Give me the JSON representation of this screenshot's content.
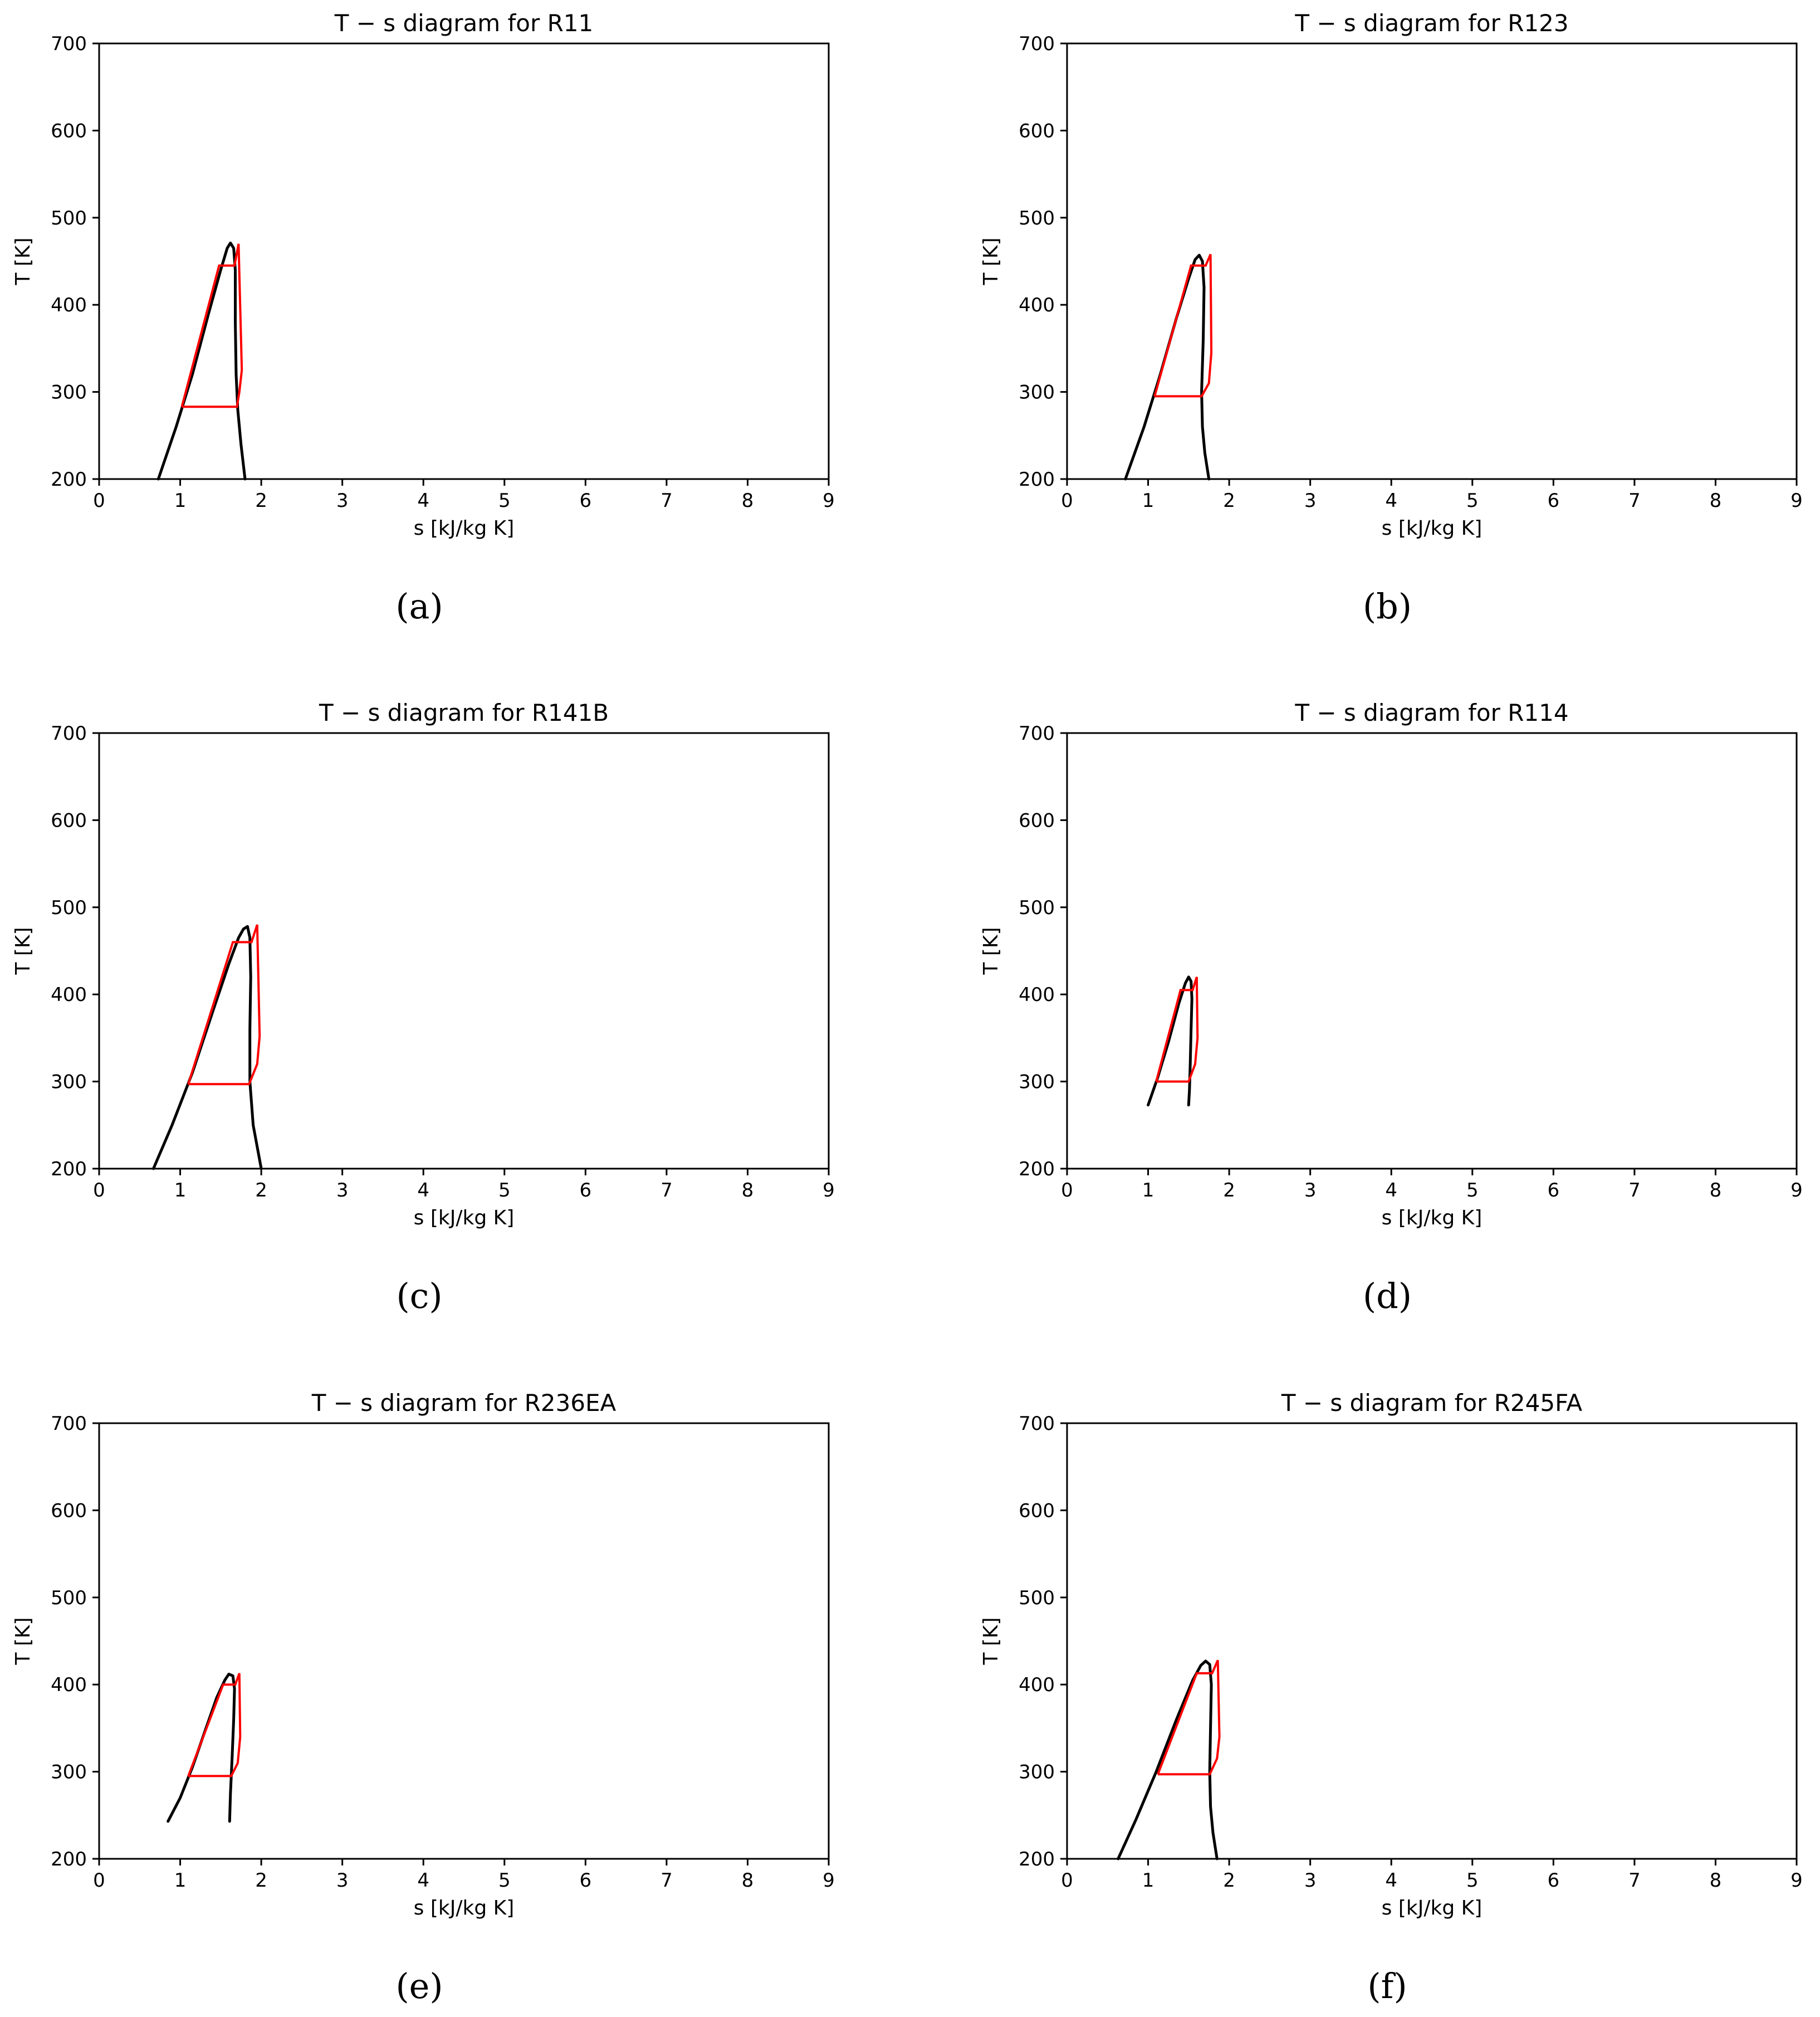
{
  "chart_data": [
    {
      "type": "line",
      "title": "T − s diagram for R11",
      "xlabel": "s [kJ/kg K]",
      "ylabel": "T [K]",
      "xlim": [
        0,
        9
      ],
      "ylim": [
        200,
        700
      ],
      "xticks": [
        "0",
        "1",
        "2",
        "3",
        "4",
        "5",
        "6",
        "7",
        "8",
        "9"
      ],
      "yticks": [
        "200",
        "300",
        "400",
        "500",
        "600",
        "700"
      ],
      "caption": "(a)",
      "grid": false,
      "series": [
        {
          "color": "#000000",
          "x": [
            0.73,
            0.95,
            1.15,
            1.35,
            1.5,
            1.58,
            1.62,
            1.66,
            1.68,
            1.68,
            1.69,
            1.71,
            1.75,
            1.8
          ],
          "y": [
            200,
            260,
            320,
            390,
            440,
            465,
            471,
            465,
            440,
            380,
            320,
            280,
            240,
            200
          ]
        },
        {
          "color": "#ff0000",
          "x": [
            1.02,
            1.48,
            1.48,
            1.65,
            1.67,
            1.72,
            1.76,
            1.73,
            1.7,
            1.02
          ],
          "y": [
            283,
            445,
            445,
            445,
            445,
            470,
            325,
            300,
            283,
            283
          ]
        }
      ]
    },
    {
      "type": "line",
      "title": "T − s diagram for R123",
      "xlabel": "s [kJ/kg K]",
      "ylabel": "T [K]",
      "xlim": [
        0,
        9
      ],
      "ylim": [
        200,
        700
      ],
      "xticks": [
        "0",
        "1",
        "2",
        "3",
        "4",
        "5",
        "6",
        "7",
        "8",
        "9"
      ],
      "yticks": [
        "200",
        "300",
        "400",
        "500",
        "600",
        "700"
      ],
      "caption": "(b)",
      "grid": false,
      "series": [
        {
          "color": "#000000",
          "x": [
            0.72,
            0.95,
            1.15,
            1.35,
            1.5,
            1.58,
            1.63,
            1.67,
            1.69,
            1.68,
            1.66,
            1.67,
            1.7,
            1.75
          ],
          "y": [
            200,
            260,
            320,
            385,
            430,
            452,
            457,
            450,
            420,
            360,
            300,
            260,
            230,
            200
          ]
        },
        {
          "color": "#ff0000",
          "x": [
            1.08,
            1.53,
            1.53,
            1.69,
            1.71,
            1.77,
            1.78,
            1.75,
            1.66,
            1.08
          ],
          "y": [
            295,
            445,
            445,
            445,
            445,
            458,
            345,
            310,
            295,
            295
          ]
        }
      ]
    },
    {
      "type": "line",
      "title": "T − s diagram for R141B",
      "xlabel": "s [kJ/kg K]",
      "ylabel": "T [K]",
      "xlim": [
        0,
        9
      ],
      "ylim": [
        200,
        700
      ],
      "xticks": [
        "0",
        "1",
        "2",
        "3",
        "4",
        "5",
        "6",
        "7",
        "8",
        "9"
      ],
      "yticks": [
        "200",
        "300",
        "400",
        "500",
        "600",
        "700"
      ],
      "caption": "(c)",
      "grid": false,
      "series": [
        {
          "color": "#000000",
          "x": [
            0.67,
            0.9,
            1.15,
            1.4,
            1.6,
            1.72,
            1.78,
            1.83,
            1.86,
            1.87,
            1.86,
            1.86,
            1.9,
            2.0
          ],
          "y": [
            200,
            250,
            310,
            380,
            435,
            465,
            475,
            478,
            465,
            420,
            360,
            300,
            250,
            200
          ]
        },
        {
          "color": "#ff0000",
          "x": [
            1.1,
            1.65,
            1.65,
            1.86,
            1.88,
            1.95,
            1.98,
            1.95,
            1.85,
            1.1
          ],
          "y": [
            297,
            460,
            460,
            460,
            460,
            480,
            352,
            320,
            297,
            297
          ]
        }
      ]
    },
    {
      "type": "line",
      "title": "T − s diagram for R114",
      "xlabel": "s [kJ/kg K]",
      "ylabel": "T [K]",
      "xlim": [
        0,
        9
      ],
      "ylim": [
        200,
        700
      ],
      "xticks": [
        "0",
        "1",
        "2",
        "3",
        "4",
        "5",
        "6",
        "7",
        "8",
        "9"
      ],
      "yticks": [
        "200",
        "300",
        "400",
        "500",
        "600",
        "700"
      ],
      "caption": "(d)",
      "grid": false,
      "series": [
        {
          "color": "#000000",
          "x": [
            1.0,
            1.12,
            1.25,
            1.38,
            1.46,
            1.5,
            1.53,
            1.54,
            1.53,
            1.52,
            1.51,
            1.5
          ],
          "y": [
            273,
            305,
            345,
            390,
            413,
            420,
            415,
            395,
            360,
            320,
            290,
            273
          ]
        },
        {
          "color": "#ff0000",
          "x": [
            1.1,
            1.4,
            1.4,
            1.53,
            1.55,
            1.6,
            1.61,
            1.58,
            1.5,
            1.1
          ],
          "y": [
            300,
            405,
            405,
            405,
            405,
            420,
            350,
            320,
            300,
            300
          ]
        }
      ]
    },
    {
      "type": "line",
      "title": "T − s diagram for R236EA",
      "xlabel": "s [kJ/kg K]",
      "ylabel": "T [K]",
      "xlim": [
        0,
        9
      ],
      "ylim": [
        200,
        700
      ],
      "xticks": [
        "0",
        "1",
        "2",
        "3",
        "4",
        "5",
        "6",
        "7",
        "8",
        "9"
      ],
      "yticks": [
        "200",
        "300",
        "400",
        "500",
        "600",
        "700"
      ],
      "caption": "(e)",
      "grid": false,
      "series": [
        {
          "color": "#000000",
          "x": [
            0.85,
            1.0,
            1.15,
            1.3,
            1.45,
            1.55,
            1.6,
            1.65,
            1.67,
            1.66,
            1.64,
            1.62,
            1.61
          ],
          "y": [
            243,
            270,
            305,
            345,
            385,
            405,
            412,
            410,
            395,
            360,
            315,
            275,
            243
          ]
        },
        {
          "color": "#ff0000",
          "x": [
            1.1,
            1.53,
            1.53,
            1.66,
            1.68,
            1.73,
            1.74,
            1.71,
            1.63,
            1.1
          ],
          "y": [
            295,
            400,
            400,
            400,
            400,
            413,
            340,
            310,
            295,
            295
          ]
        }
      ]
    },
    {
      "type": "line",
      "title": "T − s diagram for R245FA",
      "xlabel": "s [kJ/kg K]",
      "ylabel": "T [K]",
      "xlim": [
        0,
        9
      ],
      "ylim": [
        200,
        700
      ],
      "xticks": [
        "0",
        "1",
        "2",
        "3",
        "4",
        "5",
        "6",
        "7",
        "8",
        "9"
      ],
      "yticks": [
        "200",
        "300",
        "400",
        "500",
        "600",
        "700"
      ],
      "caption": "(f)",
      "grid": false,
      "series": [
        {
          "color": "#000000",
          "x": [
            0.63,
            0.85,
            1.1,
            1.35,
            1.55,
            1.65,
            1.71,
            1.76,
            1.78,
            1.77,
            1.76,
            1.77,
            1.8,
            1.85
          ],
          "y": [
            200,
            245,
            300,
            360,
            405,
            422,
            427,
            423,
            400,
            350,
            300,
            260,
            230,
            200
          ]
        },
        {
          "color": "#ff0000",
          "x": [
            1.12,
            1.6,
            1.6,
            1.77,
            1.79,
            1.86,
            1.88,
            1.85,
            1.76,
            1.12
          ],
          "y": [
            297,
            413,
            413,
            413,
            413,
            428,
            340,
            315,
            297,
            297
          ]
        }
      ]
    }
  ]
}
